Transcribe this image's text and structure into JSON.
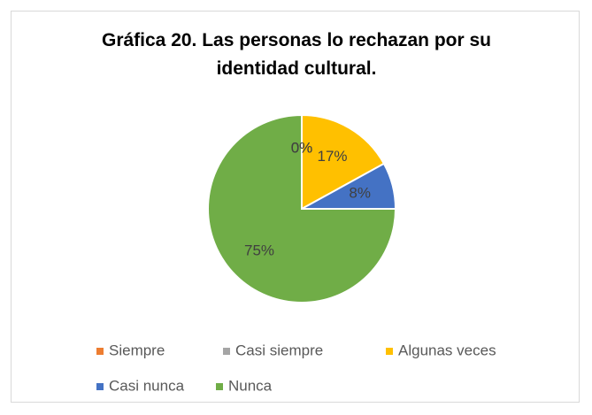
{
  "chart_data": {
    "type": "pie",
    "title": "Gráfica 20. Las personas lo rechazan por su identidad cultural.",
    "categories": [
      "Siempre",
      "Casi siempre",
      "Algunas veces",
      "Casi nunca",
      "Nunca"
    ],
    "values": [
      0,
      0,
      17,
      8,
      75
    ],
    "value_labels": [
      "0%",
      "0%",
      "17%",
      "8%",
      "75%"
    ],
    "colors": [
      "#ed7d31",
      "#a5a5a5",
      "#ffc000",
      "#4472c4",
      "#70ad47"
    ],
    "legend": "bottom"
  }
}
